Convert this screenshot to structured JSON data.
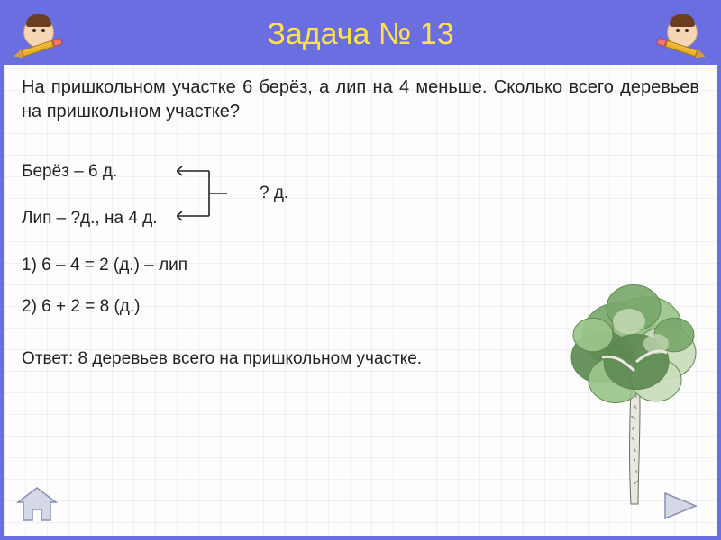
{
  "colors": {
    "frame": "#6a6ee0",
    "header_bg": "#6a6ee0",
    "title": "#ffe14a",
    "text": "#222222",
    "nav_stroke": "#8a8fb5",
    "nav_fill": "#d5d8e6",
    "grid": "rgba(100,100,150,0.08)"
  },
  "title": "Задача № 13",
  "problem": "На пришкольном участке 6 берёз, а лип на 4 меньше. Сколько всего деревьев на пришкольном участке?",
  "given": {
    "line1": "Берёз – 6 д.",
    "line2": "Лип – ?д., на 4 д.",
    "bracket_label": "? д."
  },
  "steps": {
    "s1": "1) 6 – 4 = 2 (д.) – лип",
    "s2": "2) 6 + 2 = 8 (д.)"
  },
  "answer": "Ответ: 8 деревьев всего на пришкольном участке.",
  "tree": {
    "foliage_colors": [
      "#7aa86b",
      "#9bc48a",
      "#c9dcb8",
      "#5e8a52"
    ],
    "trunk_color": "#e8e8e0",
    "trunk_mark": "#6b6b62"
  }
}
